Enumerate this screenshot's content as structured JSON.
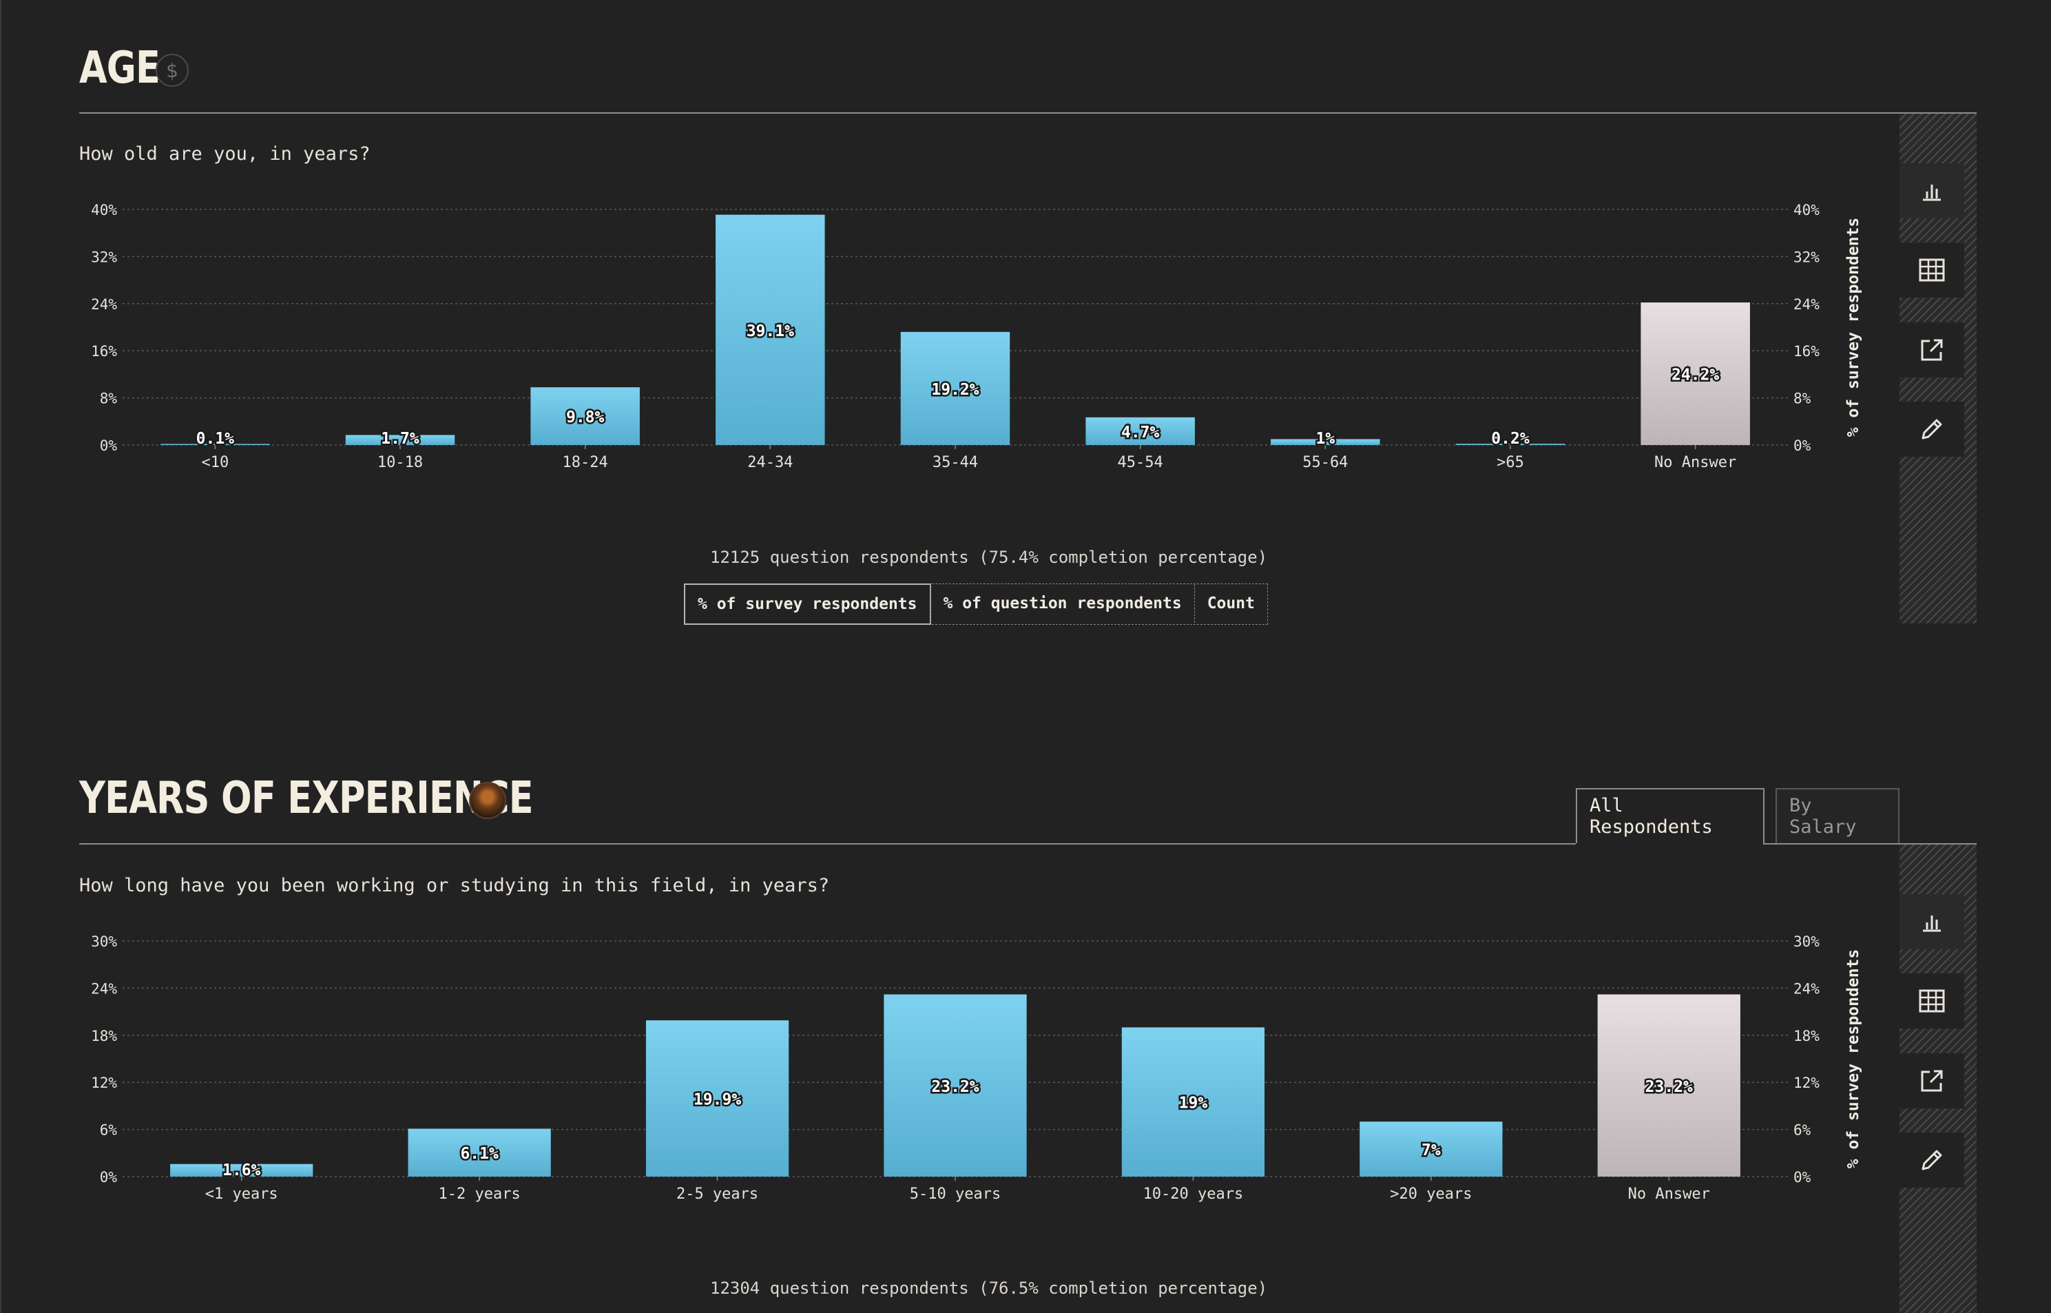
{
  "colors": {
    "bar": "#62c0e1",
    "bar_light": "#7ed2ef",
    "no_answer": "#e8dfe1",
    "grid": "#5a5958",
    "text": "#e6e2da"
  },
  "icons": {
    "chart": "bar-chart-icon",
    "table": "table-icon",
    "share": "external-link-icon",
    "edit": "pencil-icon"
  },
  "age": {
    "title": "AGE",
    "badge": "$",
    "question": "How old are you, in years?",
    "footnote": "12125 question respondents (75.4% completion percentage)",
    "units": [
      "% of survey respondents",
      "% of question respondents",
      "Count"
    ],
    "active_unit": 0
  },
  "experience": {
    "title": "YEARS OF EXPERIENCE",
    "question": "How long have you been working or studying in this field, in years?",
    "footnote": "12304 question respondents (76.5% completion percentage)",
    "tabs": [
      "All Respondents",
      "By Salary"
    ],
    "active_tab": 0
  },
  "chart_data": [
    {
      "type": "bar",
      "categories": [
        "<10",
        "10-18",
        "18-24",
        "24-34",
        "35-44",
        "45-54",
        "55-64",
        ">65",
        "No Answer"
      ],
      "values": [
        0.1,
        1.7,
        9.8,
        39.1,
        19.2,
        4.7,
        1,
        0.2,
        24.2
      ],
      "labels": [
        "0.1%",
        "1.7%",
        "9.8%",
        "39.1%",
        "19.2%",
        "4.7%",
        "1%",
        "0.2%",
        "24.2%"
      ],
      "ylim": [
        0,
        40
      ],
      "yticks": [
        "0%",
        "8%",
        "16%",
        "24%",
        "32%",
        "40%"
      ],
      "ylabel": "% of survey respondents",
      "grid": true
    },
    {
      "type": "bar",
      "categories": [
        "<1 years",
        "1-2 years",
        "2-5 years",
        "5-10 years",
        "10-20 years",
        ">20 years",
        "No Answer"
      ],
      "values": [
        1.6,
        6.1,
        19.9,
        23.2,
        19,
        7,
        23.2
      ],
      "labels": [
        "1.6%",
        "6.1%",
        "19.9%",
        "23.2%",
        "19%",
        "7%",
        "23.2%"
      ],
      "ylim": [
        0,
        30
      ],
      "yticks": [
        "0%",
        "6%",
        "12%",
        "18%",
        "24%",
        "30%"
      ],
      "ylabel": "% of survey respondents",
      "grid": true
    }
  ]
}
